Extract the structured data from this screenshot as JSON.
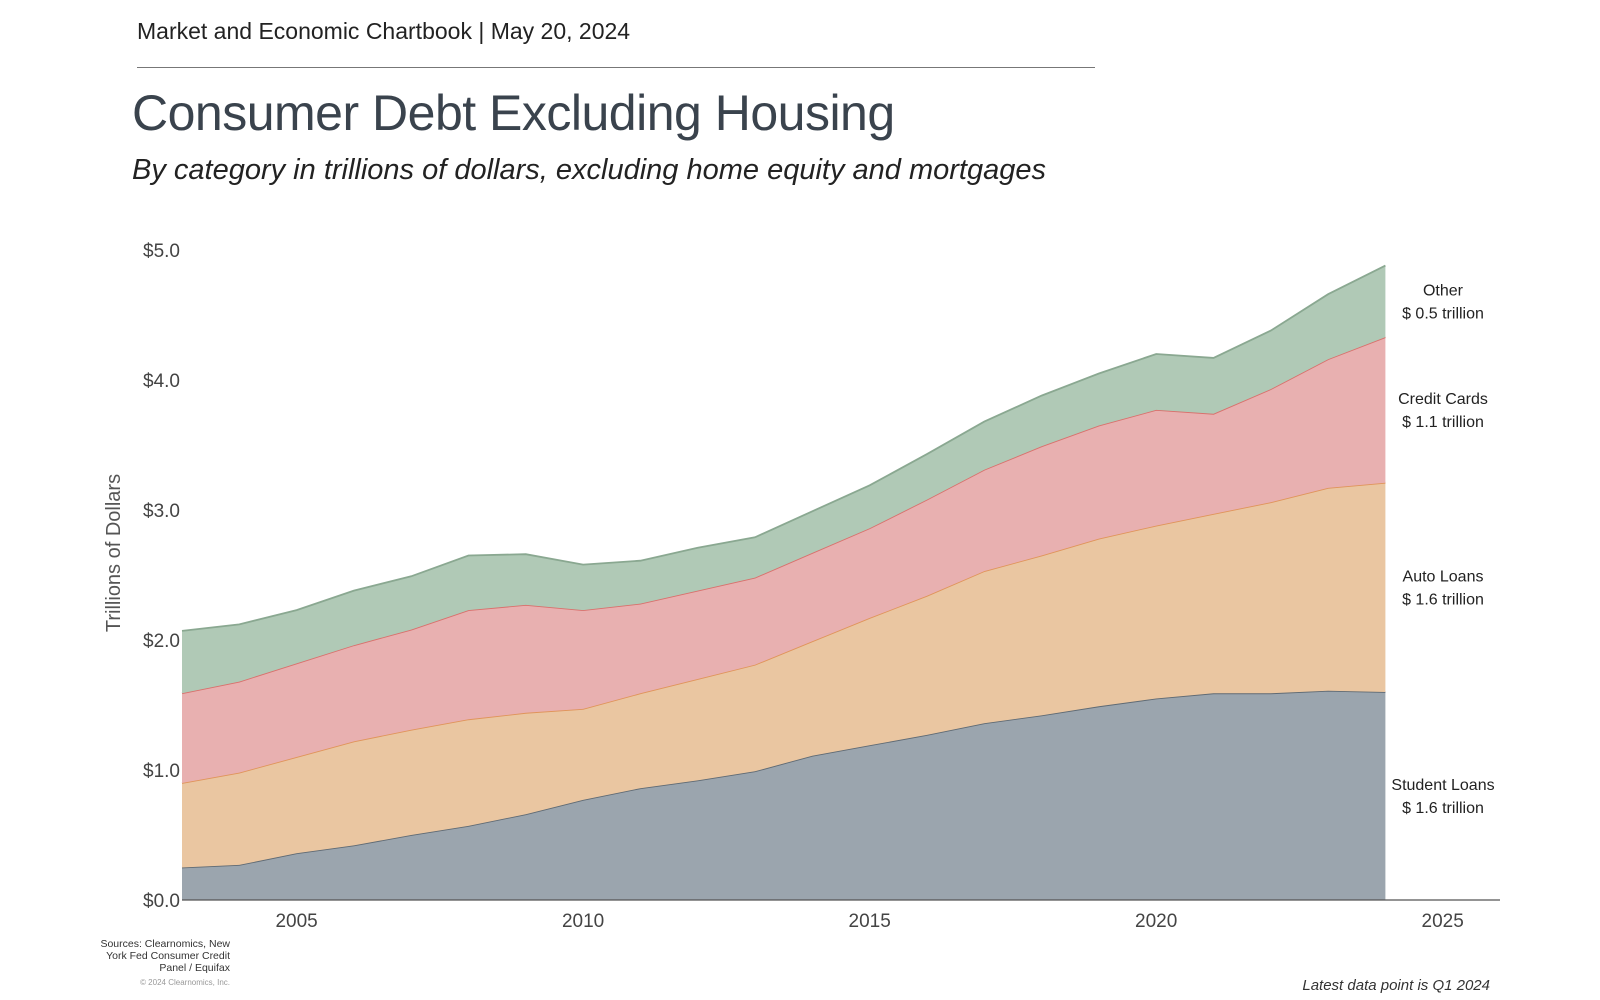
{
  "header": {
    "chartbook": "Market and Economic Chartbook | May 20, 2024",
    "title": "Consumer Debt Excluding Housing",
    "subtitle": "By category in trillions of dollars, excluding home equity and mortgages"
  },
  "footer": {
    "sources": "Sources: Clearnomics, New York Fed Consumer Credit Panel / Equifax",
    "copyright": "© 2024 Clearnomics, Inc.",
    "latest": "Latest data point is Q1 2024"
  },
  "chart_data": {
    "type": "area",
    "stacked": true,
    "title": "Consumer Debt Excluding Housing",
    "ylabel": "Trillions of Dollars",
    "xlabel": "",
    "xlim": [
      2003.0,
      2026.0
    ],
    "ylim": [
      0,
      5.0
    ],
    "x_ticks": [
      2005,
      2010,
      2015,
      2020,
      2025
    ],
    "y_ticks": [
      0,
      1,
      2,
      3,
      4,
      5
    ],
    "y_tick_labels": [
      "$0.0",
      "$1.0",
      "$2.0",
      "$3.0",
      "$4.0",
      "$5.0"
    ],
    "x_tick_labels": [
      "2005",
      "2010",
      "2015",
      "2020",
      "2025"
    ],
    "x": [
      2003.0,
      2004.0,
      2005.0,
      2006.0,
      2007.0,
      2008.0,
      2009.0,
      2010.0,
      2011.0,
      2012.0,
      2013.0,
      2014.0,
      2015.0,
      2016.0,
      2017.0,
      2018.0,
      2019.0,
      2020.0,
      2021.0,
      2022.0,
      2023.0,
      2024.0
    ],
    "series": [
      {
        "name": "Student Loans",
        "label": "Student Loans",
        "value_label": "$ 1.6 trillion",
        "color": "#9ba5ae",
        "line_color": "#5f6a74",
        "values": [
          0.25,
          0.27,
          0.36,
          0.42,
          0.5,
          0.57,
          0.66,
          0.77,
          0.86,
          0.92,
          0.99,
          1.11,
          1.19,
          1.27,
          1.36,
          1.42,
          1.49,
          1.55,
          1.59,
          1.59,
          1.61,
          1.6
        ]
      },
      {
        "name": "Auto Loans",
        "label": "Auto Loans",
        "value_label": "$ 1.6 trillion",
        "color": "#eac6a1",
        "line_color": "#e0945a",
        "values": [
          0.65,
          0.71,
          0.74,
          0.8,
          0.81,
          0.82,
          0.78,
          0.7,
          0.73,
          0.78,
          0.82,
          0.88,
          0.98,
          1.07,
          1.17,
          1.23,
          1.29,
          1.33,
          1.38,
          1.47,
          1.56,
          1.61
        ]
      },
      {
        "name": "Credit Cards",
        "label": "Credit Cards",
        "value_label": "$ 1.1 trillion",
        "color": "#e8b0b0",
        "line_color": "#d9706c",
        "values": [
          0.69,
          0.7,
          0.72,
          0.74,
          0.77,
          0.84,
          0.83,
          0.76,
          0.69,
          0.68,
          0.67,
          0.68,
          0.69,
          0.74,
          0.78,
          0.84,
          0.87,
          0.89,
          0.77,
          0.87,
          0.99,
          1.12
        ]
      },
      {
        "name": "Other",
        "label": "Other",
        "value_label": "$ 0.5 trillion",
        "color": "#b0c9b6",
        "line_color": "#8aa891",
        "values": [
          0.48,
          0.44,
          0.41,
          0.42,
          0.41,
          0.42,
          0.39,
          0.35,
          0.33,
          0.33,
          0.31,
          0.32,
          0.33,
          0.35,
          0.37,
          0.39,
          0.4,
          0.43,
          0.43,
          0.45,
          0.5,
          0.55
        ]
      }
    ],
    "legend_placement": "right, inline with stacked bands",
    "grid": false
  }
}
